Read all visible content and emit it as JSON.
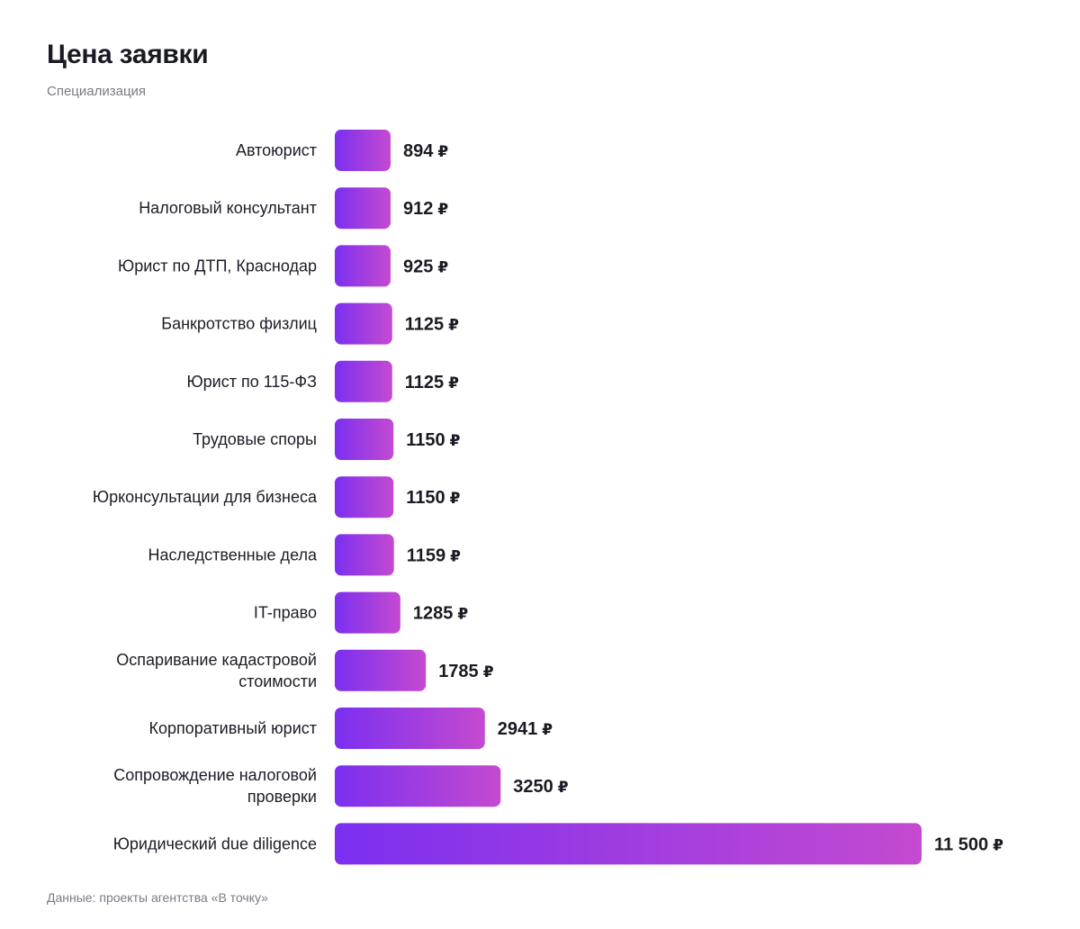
{
  "chart_data": {
    "type": "bar",
    "orientation": "horizontal",
    "title": "Цена заявки",
    "subtitle": "Специализация",
    "source": "Данные: проекты агентства «В точку»",
    "unit": "₽",
    "categories": [
      [
        "Автоюрист"
      ],
      [
        "Налоговый консультант"
      ],
      [
        "Юрист по ДТП, Краснодар"
      ],
      [
        "Банкротство физлиц"
      ],
      [
        "Юрист по 115-ФЗ"
      ],
      [
        "Трудовые споры"
      ],
      [
        "Юрконсультации для бизнеса"
      ],
      [
        "Наследственные дела"
      ],
      [
        "IT-право"
      ],
      [
        "Оспаривание кадастровой",
        "стоимости"
      ],
      [
        "Корпоративный юрист"
      ],
      [
        "Сопровождение налоговой",
        "проверки"
      ],
      [
        "Юридический due diligence"
      ]
    ],
    "values": [
      894,
      912,
      925,
      1125,
      1125,
      1150,
      1150,
      1159,
      1285,
      1785,
      2941,
      3250,
      11500
    ],
    "value_labels": [
      "894",
      "912",
      "925",
      "1125",
      "1125",
      "1150",
      "1150",
      "1159",
      "1285",
      "1785",
      "2941",
      "3250",
      "11 500"
    ],
    "colors": {
      "bar_gradient_start": "#7b2ff0",
      "bar_gradient_end": "#c44ad0",
      "label": "#1c1c28",
      "muted": "#7a7a86"
    },
    "grid": false,
    "legend": "none"
  }
}
